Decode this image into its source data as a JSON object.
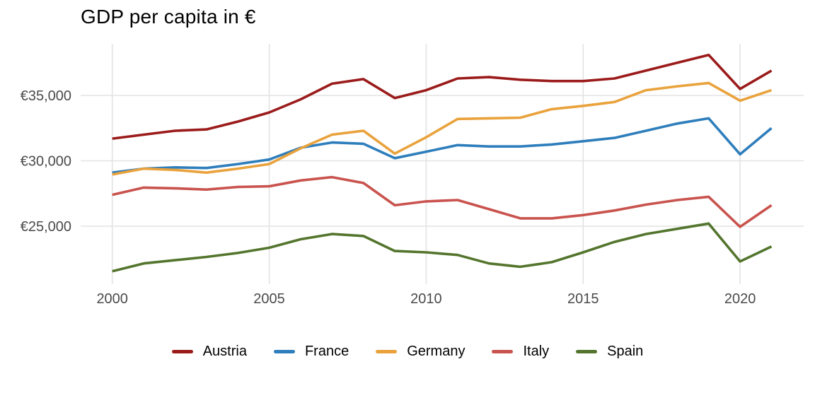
{
  "chart_data": {
    "type": "line",
    "title": "GDP per capita in €",
    "x": [
      2000,
      2001,
      2002,
      2003,
      2004,
      2005,
      2006,
      2007,
      2008,
      2009,
      2010,
      2011,
      2012,
      2013,
      2014,
      2015,
      2016,
      2017,
      2018,
      2019,
      2020,
      2021
    ],
    "x_ticks": [
      2000,
      2005,
      2010,
      2015,
      2020
    ],
    "x_tick_labels": [
      "2000",
      "2005",
      "2010",
      "2015",
      "2020"
    ],
    "y_ticks": [
      25000,
      30000,
      35000
    ],
    "y_tick_labels": [
      "€25,000",
      "€30,000",
      "€35,000"
    ],
    "xlim": [
      2000,
      2021
    ],
    "ylim": [
      21000,
      38800
    ],
    "grid": true,
    "legend_position": "bottom-center",
    "currency": "EUR",
    "series": [
      {
        "name": "Austria",
        "color": "#9B1B1B",
        "values": [
          31700,
          32000,
          32300,
          32400,
          33000,
          33700,
          34700,
          35900,
          36250,
          34800,
          35400,
          36300,
          36400,
          36200,
          36100,
          36100,
          36300,
          36900,
          37500,
          38100,
          35500,
          36900
        ]
      },
      {
        "name": "France",
        "color": "#2E7EBC",
        "values": [
          29100,
          29400,
          29500,
          29450,
          29750,
          30100,
          31000,
          31400,
          31300,
          30200,
          30700,
          31200,
          31100,
          31100,
          31250,
          31500,
          31750,
          32300,
          32850,
          33250,
          30500,
          32500
        ]
      },
      {
        "name": "Germany",
        "color": "#E9A23C",
        "values": [
          28950,
          29400,
          29300,
          29100,
          29400,
          29750,
          30950,
          32000,
          32300,
          30550,
          31800,
          33200,
          33250,
          33300,
          33950,
          34200,
          34500,
          35400,
          35700,
          35950,
          34600,
          35400
        ]
      },
      {
        "name": "Italy",
        "color": "#C9534E",
        "values": [
          27400,
          27950,
          27900,
          27800,
          28000,
          28050,
          28500,
          28750,
          28300,
          26600,
          26900,
          27000,
          26300,
          25600,
          25600,
          25850,
          26200,
          26650,
          27000,
          27250,
          24950,
          26600
        ]
      },
      {
        "name": "Spain",
        "color": "#54752D",
        "values": [
          21550,
          22150,
          22400,
          22650,
          22950,
          23350,
          24000,
          24400,
          24250,
          23100,
          23000,
          22800,
          22150,
          21900,
          22250,
          23000,
          23800,
          24400,
          24800,
          25200,
          22300,
          23450
        ]
      }
    ]
  },
  "style": {
    "grid_color": "#E3E3E3",
    "tick_label_color": "#4A4A4A",
    "background_color": "#FFFFFF",
    "line_width": 3.6
  }
}
